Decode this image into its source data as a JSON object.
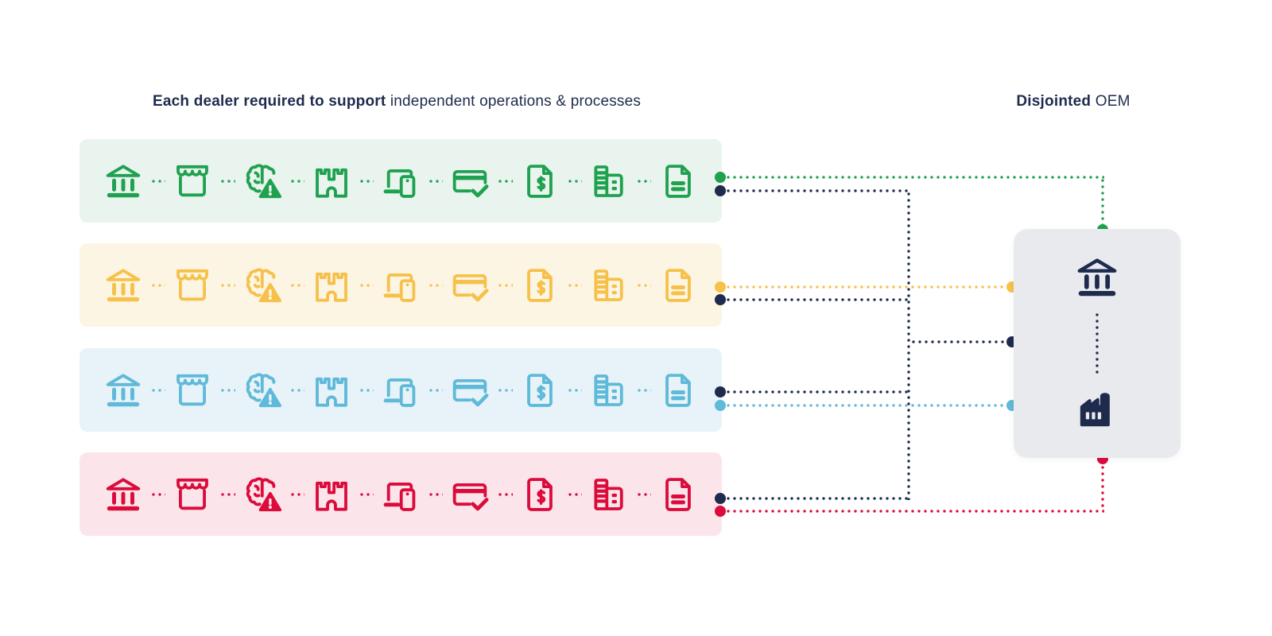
{
  "titles": {
    "left": {
      "bold": "Each dealer required to support",
      "regular": " independent operations & processes"
    },
    "right": {
      "bold": "Disjointed",
      "regular": " OEM"
    }
  },
  "palette": {
    "navy": "#1E2B4D",
    "panel_bg": "#E9EAEE",
    "page_bg": "#FFFFFF"
  },
  "dealer_rows": [
    {
      "id": "dealer-1",
      "color": "#1FA150",
      "bg": "#E8F4ED"
    },
    {
      "id": "dealer-2",
      "color": "#F6C14A",
      "bg": "#FDF5E4"
    },
    {
      "id": "dealer-3",
      "color": "#5FB9D8",
      "bg": "#E7F3F8"
    },
    {
      "id": "dealer-4",
      "color": "#DB0B3C",
      "bg": "#FBE5EA"
    }
  ],
  "row_icons": [
    "bank",
    "storefront",
    "brain-alert",
    "castle",
    "devices",
    "card-check",
    "invoice-dollar",
    "office-building",
    "document"
  ],
  "oem": {
    "icons": [
      "bank",
      "factory"
    ]
  },
  "connections": [
    {
      "from": "dealer-1",
      "line": "green",
      "to": "oem-top-edge"
    },
    {
      "from": "dealer-1",
      "line": "navy",
      "to": "navy-trunk"
    },
    {
      "from": "dealer-2",
      "line": "yellow",
      "to": "oem-left-edge"
    },
    {
      "from": "dealer-2",
      "line": "navy",
      "to": "navy-trunk"
    },
    {
      "from": "dealer-3",
      "line": "navy",
      "to": "navy-trunk"
    },
    {
      "from": "dealer-3",
      "line": "blue",
      "to": "oem-left-edge"
    },
    {
      "from": "dealer-4",
      "line": "navy",
      "to": "navy-trunk"
    },
    {
      "from": "dealer-4",
      "line": "red",
      "to": "oem-bottom-edge"
    },
    {
      "from": "navy-trunk",
      "line": "navy",
      "to": "oem-left-edge"
    }
  ]
}
